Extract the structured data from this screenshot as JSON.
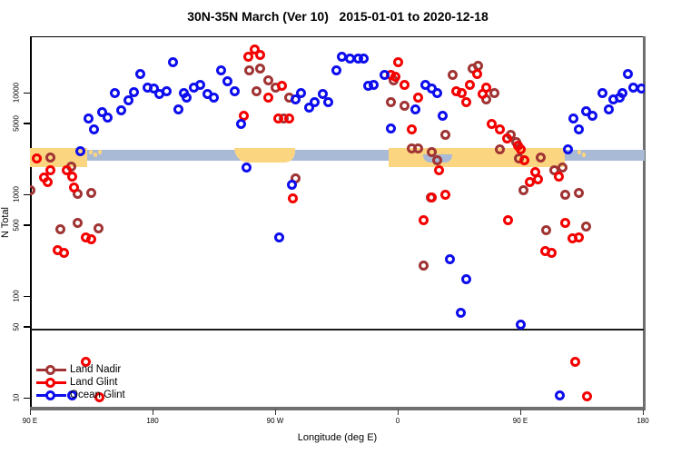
{
  "title": "30N-35N March (Ver 10)   2015-01-01 to 2020-12-18",
  "y_axis": {
    "label": "N Total",
    "scale": "log",
    "ticks": [
      {
        "value": 10000,
        "label": "10000"
      },
      {
        "value": 5000,
        "label": "5000"
      },
      {
        "value": 1000,
        "label": "1000"
      },
      {
        "value": 500,
        "label": "500"
      },
      {
        "value": 100,
        "label": "100"
      },
      {
        "value": 50,
        "label": "50"
      },
      {
        "value": 10,
        "label": "10"
      }
    ],
    "reference_line_at": 50
  },
  "x_axis": {
    "label": "Longitude (deg E)",
    "ticks": [
      {
        "lon": 90,
        "label": "90 E"
      },
      {
        "lon": 180,
        "label": "180"
      },
      {
        "lon": 270,
        "label": "90 W"
      },
      {
        "lon": 360,
        "label": "0"
      },
      {
        "lon": 450,
        "label": "90 E"
      },
      {
        "lon": 540,
        "label": "180"
      }
    ]
  },
  "legend": [
    {
      "name": "Land Nadir",
      "color": "#A03434"
    },
    {
      "name": "Land Glint",
      "color": "#F40000"
    },
    {
      "name": "Ocean Glint",
      "color": "#0D0DEE"
    }
  ],
  "colors": {
    "ocean_band": "#A8BAD6",
    "land_band": "#FCD581",
    "axis_gray": "#6F6F6F",
    "reference_line": "#1B1B1B"
  },
  "map_band": {
    "ocean_range": [
      90,
      541.5
    ],
    "land_segments": [
      {
        "name": "asia",
        "from": 90,
        "to": 132,
        "style": "tall"
      },
      {
        "name": "japan-west",
        "from": 133,
        "to": 143,
        "style": "dots"
      },
      {
        "name": "north-america",
        "from": 240,
        "to": 284.7,
        "style": "rounded"
      },
      {
        "name": "africa-eurasia",
        "from": 353.3,
        "to": 482.7,
        "style": "tall"
      },
      {
        "name": "japan-east",
        "from": 492,
        "to": 499,
        "style": "dots"
      }
    ],
    "sea_overlays": [
      {
        "name": "mediterranean",
        "from": 378.7,
        "to": 400
      }
    ]
  },
  "chart_data": {
    "type": "scatter",
    "xlabel": "Longitude (deg E)",
    "ylabel": "N Total",
    "xlim": [
      90,
      541.5
    ],
    "ylim_log": [
      10,
      35000
    ],
    "legend_position": "bottom-left",
    "series": [
      {
        "name": "Land Nadir",
        "color": "#A03434",
        "points": [
          [
            90,
            1090
          ],
          [
            105.3,
            2320
          ],
          [
            112,
            449
          ],
          [
            120,
            1890
          ],
          [
            124.7,
            1020
          ],
          [
            125.3,
            528
          ],
          [
            135.3,
            1040
          ],
          [
            140,
            458
          ],
          [
            250.7,
            16700
          ],
          [
            259.3,
            17400
          ],
          [
            265.3,
            13300
          ],
          [
            256,
            10400
          ],
          [
            270,
            11100
          ],
          [
            276,
            5510
          ],
          [
            280,
            8840
          ],
          [
            285.3,
            1420
          ],
          [
            355.3,
            7980
          ],
          [
            356.7,
            13300
          ],
          [
            365.3,
            7350
          ],
          [
            370,
            2850
          ],
          [
            374.7,
            2850
          ],
          [
            379.3,
            201
          ],
          [
            384,
            940
          ],
          [
            385.3,
            2580
          ],
          [
            388.7,
            2140
          ],
          [
            395.3,
            3880
          ],
          [
            400,
            14800
          ],
          [
            414.7,
            17400
          ],
          [
            418.7,
            18200
          ],
          [
            425.3,
            8490
          ],
          [
            431.3,
            10000
          ],
          [
            435.3,
            2790
          ],
          [
            443.3,
            3880
          ],
          [
            446.7,
            3230
          ],
          [
            448.7,
            2230
          ],
          [
            452,
            1090
          ],
          [
            465.3,
            2320
          ],
          [
            469.3,
            440
          ],
          [
            474.7,
            1710
          ],
          [
            480.7,
            1850
          ],
          [
            482.7,
            1000
          ],
          [
            493.3,
            1040
          ],
          [
            498,
            478
          ]
        ]
      },
      {
        "name": "Land Glint",
        "color": "#F40000",
        "points": [
          [
            95.3,
            2230
          ],
          [
            100,
            1450
          ],
          [
            102.7,
            1310
          ],
          [
            104.7,
            1740
          ],
          [
            110,
            285
          ],
          [
            115.3,
            263
          ],
          [
            116.7,
            1710
          ],
          [
            120.7,
            1480
          ],
          [
            122,
            1160
          ],
          [
            131.3,
            373
          ],
          [
            135.3,
            358
          ],
          [
            131.3,
            22.7
          ],
          [
            141.3,
            10.2
          ],
          [
            246.7,
            5860
          ],
          [
            250,
            22300
          ],
          [
            254.7,
            26300
          ],
          [
            259.3,
            23700
          ],
          [
            265.3,
            9020
          ],
          [
            272,
            5620
          ],
          [
            274.7,
            11600
          ],
          [
            280,
            5620
          ],
          [
            283.3,
            920
          ],
          [
            355.3,
            14800
          ],
          [
            358,
            14200
          ],
          [
            360,
            20100
          ],
          [
            364.7,
            12000
          ],
          [
            370,
            4310
          ],
          [
            374.7,
            9020
          ],
          [
            379.3,
            551
          ],
          [
            385.3,
            940
          ],
          [
            390,
            1740
          ],
          [
            395.3,
            1000
          ],
          [
            403.3,
            10400
          ],
          [
            406.7,
            10000
          ],
          [
            410,
            8140
          ],
          [
            413.3,
            12000
          ],
          [
            418,
            15100
          ],
          [
            422,
            9790
          ],
          [
            424.7,
            11100
          ],
          [
            428.7,
            4970
          ],
          [
            434.7,
            4310
          ],
          [
            440,
            3510
          ],
          [
            441.3,
            551
          ],
          [
            448,
            3030
          ],
          [
            450,
            2740
          ],
          [
            453.3,
            2140
          ],
          [
            456.7,
            1330
          ],
          [
            461.3,
            1670
          ],
          [
            462.7,
            1390
          ],
          [
            468,
            274
          ],
          [
            472.7,
            263
          ],
          [
            478,
            1480
          ],
          [
            483.3,
            518
          ],
          [
            488,
            366
          ],
          [
            492.7,
            373
          ],
          [
            490,
            22.7
          ],
          [
            499.3,
            10.4
          ]
        ]
      },
      {
        "name": "Ocean Glint",
        "color": "#0D0DEE",
        "points": [
          [
            126.7,
            2680
          ],
          [
            132.7,
            5510
          ],
          [
            136.7,
            4310
          ],
          [
            142.7,
            6370
          ],
          [
            146.7,
            5740
          ],
          [
            152,
            10000
          ],
          [
            156.7,
            6760
          ],
          [
            162,
            8320
          ],
          [
            166,
            10200
          ],
          [
            171.3,
            15100
          ],
          [
            176,
            11100
          ],
          [
            181.3,
            10900
          ],
          [
            185.3,
            9790
          ],
          [
            190,
            10400
          ],
          [
            195.3,
            20100
          ],
          [
            198.7,
            6900
          ],
          [
            203.3,
            10000
          ],
          [
            205.3,
            8840
          ],
          [
            210,
            11100
          ],
          [
            215.3,
            12000
          ],
          [
            220,
            9790
          ],
          [
            224.7,
            8840
          ],
          [
            230,
            16400
          ],
          [
            235.3,
            12800
          ],
          [
            240,
            10400
          ],
          [
            244.7,
            4870
          ],
          [
            248.7,
            1850
          ],
          [
            273.3,
            380
          ],
          [
            282,
            1250
          ],
          [
            285.3,
            8490
          ],
          [
            288.7,
            10000
          ],
          [
            294.7,
            7190
          ],
          [
            298.7,
            8140
          ],
          [
            304.7,
            9790
          ],
          [
            308.7,
            8140
          ],
          [
            314.7,
            16400
          ],
          [
            318.7,
            22300
          ],
          [
            325.3,
            21400
          ],
          [
            331.3,
            21400
          ],
          [
            335.3,
            21400
          ],
          [
            338,
            11600
          ],
          [
            342,
            12000
          ],
          [
            350,
            14800
          ],
          [
            354.7,
            4400
          ],
          [
            373.3,
            6900
          ],
          [
            380,
            12000
          ],
          [
            384.7,
            10900
          ],
          [
            388.7,
            10000
          ],
          [
            393.3,
            5980
          ],
          [
            398,
            232
          ],
          [
            406,
            68
          ],
          [
            410,
            145
          ],
          [
            450,
            52
          ],
          [
            479.3,
            10.6
          ],
          [
            484.7,
            2740
          ],
          [
            488.7,
            5620
          ],
          [
            493.3,
            4310
          ],
          [
            498,
            6620
          ],
          [
            503.3,
            5860
          ],
          [
            510,
            10000
          ],
          [
            514.7,
            6900
          ],
          [
            518,
            8490
          ],
          [
            523.3,
            8840
          ],
          [
            525.3,
            10000
          ],
          [
            528.7,
            15100
          ],
          [
            533.3,
            11100
          ],
          [
            538.7,
            10900
          ],
          [
            121.3,
            10.6
          ]
        ]
      }
    ]
  }
}
